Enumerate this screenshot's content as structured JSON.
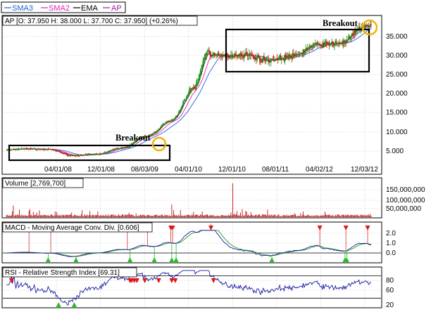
{
  "legend": [
    {
      "label": "SMA3",
      "color": "#1f5fd6"
    },
    {
      "label": "SMA2",
      "color": "#e020c0"
    },
    {
      "label": "EMA",
      "color": "#000000"
    },
    {
      "label": "AP",
      "color": "#a020a0"
    }
  ],
  "price_panel": {
    "header": "AP [O: 37.950  H: 38.000  L: 37.700  C: 37.950] (+0.26%)",
    "y_ticks": [
      "35.000",
      "30.000",
      "25.000",
      "20.000",
      "15.000",
      "10.000",
      "5.000"
    ],
    "x_ticks": [
      "04/01/08",
      "12/01/08",
      "08/03/09",
      "04/01/10",
      "12/01/10",
      "08/01/11",
      "04/02/12",
      "12/03/12"
    ],
    "annotations": [
      "Breakout",
      "Breakout"
    ]
  },
  "volume_panel": {
    "header": "Volume [2,769,700]",
    "y_ticks": [
      "150,000,000",
      "100,000,000",
      "50,000,000"
    ]
  },
  "macd_panel": {
    "header": "MACD - Moving Average Conv. Div. [0.606]",
    "y_ticks": [
      "2.0",
      "1.0",
      "0.0",
      "-1.0"
    ]
  },
  "rsi_panel": {
    "header": "RSI - Relative Strength Index [69.31]",
    "y_ticks": [
      "80",
      "60",
      "20"
    ]
  },
  "chart_data": [
    {
      "type": "candlestick",
      "title": "AP",
      "x_ticks": [
        "04/01/08",
        "12/01/08",
        "08/03/09",
        "04/01/10",
        "12/01/10",
        "08/01/11",
        "04/02/12",
        "12/03/12"
      ],
      "ylim": [
        2,
        38
      ],
      "series": [
        {
          "name": "AP",
          "x": [
            "01/2008",
            "04/2008",
            "08/2008",
            "12/2008",
            "04/2009",
            "08/2009",
            "12/2009",
            "04/2010",
            "08/2010",
            "10/2010",
            "12/2010",
            "04/2011",
            "08/2011",
            "12/2011",
            "04/2012",
            "08/2012",
            "12/2012"
          ],
          "values": [
            5.5,
            5.8,
            5.6,
            4.0,
            4.4,
            6.0,
            9.0,
            13.0,
            22.0,
            31.0,
            30.0,
            30.5,
            29.0,
            30.0,
            33.0,
            33.5,
            37.95
          ]
        },
        {
          "name": "SMA3"
        },
        {
          "name": "SMA2"
        },
        {
          "name": "EMA"
        }
      ],
      "last_bar": {
        "open": 37.95,
        "high": 38.0,
        "low": 37.7,
        "close": 37.95,
        "change_pct": 0.26
      }
    },
    {
      "type": "bar",
      "title": "Volume",
      "last_value": 2769700,
      "ylim": [
        0,
        170000000
      ]
    },
    {
      "type": "line",
      "title": "MACD - Moving Average Conv. Div.",
      "last_value": 0.606,
      "ylim": [
        -1.3,
        2.4
      ]
    },
    {
      "type": "line",
      "title": "RSI - Relative Strength Index",
      "last_value": 69.31,
      "ylim": [
        10,
        95
      ],
      "reference_lines": [
        80,
        30
      ]
    }
  ]
}
